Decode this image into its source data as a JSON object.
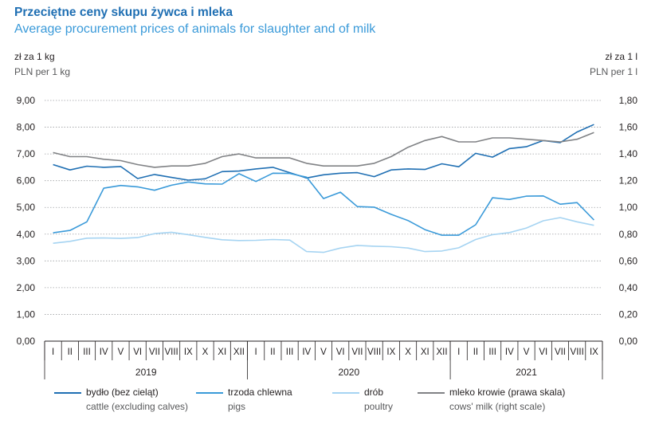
{
  "header": {
    "title_pl": "Przeciętne ceny skupu żywca i mleka",
    "title_en": "Average procurement prices of animals for slaughter and of milk"
  },
  "axes": {
    "left_unit_pl": "zł za 1 kg",
    "left_unit_en": "PLN per 1 kg",
    "right_unit_pl": "zł za 1 l",
    "right_unit_en": "PLN per 1 l"
  },
  "colors": {
    "cattle": "#1f6fb3",
    "pigs": "#3a9ad9",
    "poultry": "#a6d4f2",
    "milk": "#808285",
    "grid": "#9d9fa2",
    "axis": "#231f20"
  },
  "legend": [
    {
      "key": "cattle",
      "pl": "bydło (bez cieląt)",
      "en": "cattle (excluding calves)"
    },
    {
      "key": "pigs",
      "pl": "trzoda chlewna",
      "en": "pigs"
    },
    {
      "key": "poultry",
      "pl": "drób",
      "en": "poultry"
    },
    {
      "key": "milk",
      "pl": "mleko krowie (prawa skala)",
      "en": "cows' milk (right scale)"
    }
  ],
  "chart_data": {
    "type": "line",
    "title": "Przeciętne ceny skupu żywca i mleka",
    "subtitle": "Average procurement prices of animals for slaughter and of milk",
    "months": [
      "I",
      "II",
      "III",
      "IV",
      "V",
      "VI",
      "VII",
      "VIII",
      "IX",
      "X",
      "XI",
      "XII",
      "I",
      "II",
      "III",
      "IV",
      "V",
      "VI",
      "VII",
      "VIII",
      "IX",
      "X",
      "XI",
      "XII",
      "I",
      "II",
      "III",
      "IV",
      "V",
      "VI",
      "VII",
      "VIII",
      "IX"
    ],
    "years": [
      "2019",
      "2020",
      "2021"
    ],
    "y_left": {
      "label": "zł za 1 kg / PLN per 1 kg",
      "ylim": [
        0,
        9
      ],
      "ticks": [
        "0,00",
        "1,00",
        "2,00",
        "3,00",
        "4,00",
        "5,00",
        "6,00",
        "7,00",
        "8,00",
        "9,00"
      ]
    },
    "y_right": {
      "label": "zł za 1 l / PLN per 1 l",
      "ylim": [
        0,
        1.8
      ],
      "ticks": [
        "0,00",
        "0,20",
        "0,40",
        "0,60",
        "0,80",
        "1,00",
        "1,20",
        "1,40",
        "1,60",
        "1,80"
      ]
    },
    "grid": true,
    "legend_position": "bottom",
    "series": [
      {
        "key": "cattle",
        "name": "bydło (bez cieląt) / cattle (excluding calves)",
        "axis": "left",
        "values": [
          6.6,
          6.4,
          6.54,
          6.5,
          6.53,
          6.08,
          6.23,
          6.12,
          6.02,
          6.07,
          6.34,
          6.36,
          6.44,
          6.5,
          6.3,
          6.1,
          6.22,
          6.28,
          6.3,
          6.15,
          6.4,
          6.44,
          6.42,
          6.63,
          6.52,
          7.02,
          6.88,
          7.2,
          7.27,
          7.5,
          7.42,
          7.82,
          8.1
        ]
      },
      {
        "key": "pigs",
        "name": "trzoda chlewna / pigs",
        "axis": "left",
        "values": [
          4.05,
          4.14,
          4.46,
          5.72,
          5.82,
          5.77,
          5.64,
          5.83,
          5.95,
          5.88,
          5.87,
          6.26,
          5.97,
          6.28,
          6.27,
          6.13,
          5.33,
          5.57,
          5.03,
          5.01,
          4.74,
          4.51,
          4.17,
          3.96,
          3.96,
          4.35,
          5.36,
          5.3,
          5.42,
          5.43,
          5.12,
          5.18,
          4.53
        ]
      },
      {
        "key": "poultry",
        "name": "drób / poultry",
        "axis": "left",
        "values": [
          3.66,
          3.73,
          3.85,
          3.86,
          3.84,
          3.87,
          4.02,
          4.07,
          3.98,
          3.88,
          3.79,
          3.76,
          3.77,
          3.8,
          3.78,
          3.35,
          3.32,
          3.48,
          3.58,
          3.55,
          3.53,
          3.48,
          3.35,
          3.37,
          3.49,
          3.8,
          3.98,
          4.06,
          4.23,
          4.5,
          4.62,
          4.46,
          4.33
        ]
      },
      {
        "key": "milk",
        "name": "mleko krowie (prawa skala) / cows' milk (right scale)",
        "axis": "right",
        "values": [
          1.41,
          1.38,
          1.38,
          1.36,
          1.35,
          1.32,
          1.3,
          1.31,
          1.31,
          1.33,
          1.38,
          1.4,
          1.37,
          1.37,
          1.37,
          1.33,
          1.31,
          1.31,
          1.31,
          1.33,
          1.38,
          1.45,
          1.5,
          1.53,
          1.49,
          1.49,
          1.52,
          1.52,
          1.51,
          1.5,
          1.49,
          1.51,
          1.56
        ]
      }
    ]
  }
}
